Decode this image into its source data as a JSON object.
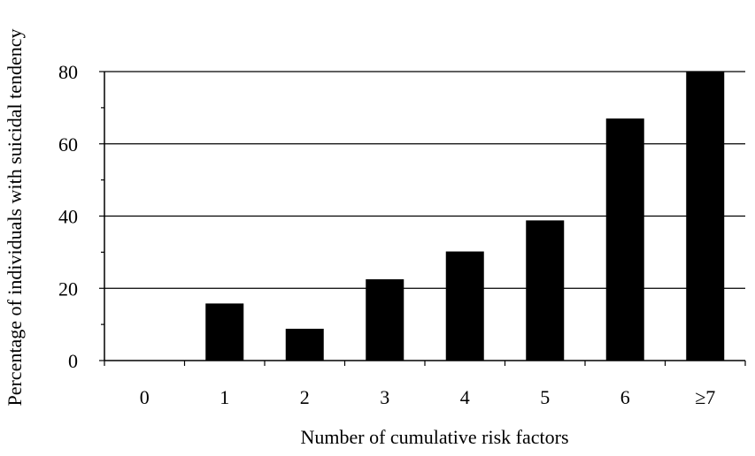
{
  "chart_data": {
    "type": "bar",
    "title": "",
    "xlabel": "Number of cumulative risk factors",
    "ylabel": "Percentage of individuals with suicidal tendency",
    "categories": [
      "0",
      "1",
      "2",
      "3",
      "4",
      "5",
      "6",
      "≥7"
    ],
    "values": [
      0,
      15.8,
      8.8,
      22.5,
      30.2,
      38.8,
      67.0,
      80.0
    ],
    "ylim": [
      0,
      80
    ],
    "yticks": [
      0,
      20,
      40,
      60,
      80
    ],
    "y_minor_step": 10,
    "grid": "horizontal major gridlines",
    "legend": "none",
    "colors": {
      "bar": "#000000",
      "grid": "#000000",
      "axis": "#000000",
      "background": "#ffffff"
    }
  }
}
